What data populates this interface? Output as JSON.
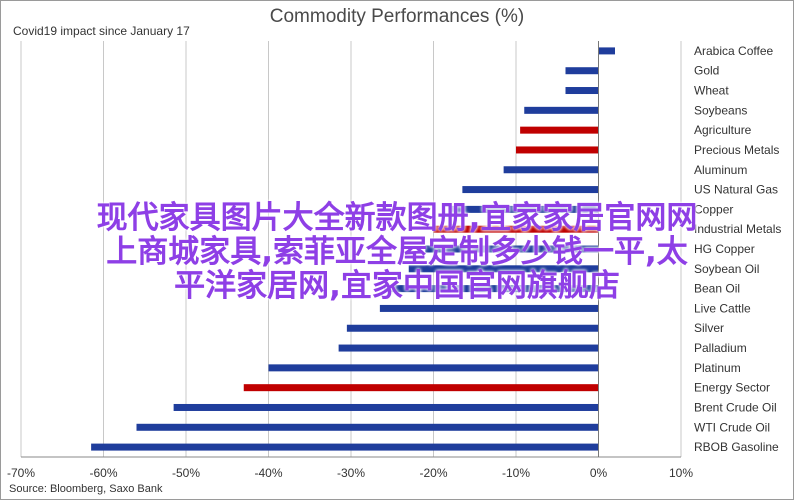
{
  "chart_data": {
    "type": "bar",
    "orientation": "horizontal",
    "title": "Commodity Performances (%)",
    "subtitle": "Covid19 impact since January 17",
    "source": "Source: Bloomberg, Saxo Bank",
    "xlim": [
      -70,
      10
    ],
    "xticks": [
      "-70%",
      "-60%",
      "-50%",
      "-40%",
      "-30%",
      "-20%",
      "-10%",
      "0%",
      "10%"
    ],
    "grid": true,
    "colors": {
      "commodity": "#1f3d9c",
      "sector": "#c00000"
    },
    "categories": [
      "Arabica Coffee",
      "Gold",
      "Wheat",
      "Soybeans",
      "Agriculture",
      "Precious Metals",
      "Aluminum",
      "US Natural Gas",
      "Copper",
      "Industrial Metals",
      "HG Copper",
      "Soybean Oil",
      "Bean Oil",
      "Live Cattle",
      "Silver",
      "Palladium",
      "Platinum",
      "Energy Sector",
      "Brent Crude Oil",
      "WTI Crude Oil",
      "RBOB Gasoline"
    ],
    "values": [
      2,
      -4,
      -4,
      -9,
      -9.5,
      -10,
      -11.5,
      -16.5,
      -18,
      -20,
      -21,
      -23,
      -26,
      -26.5,
      -30.5,
      -31.5,
      -40,
      -43,
      -51.5,
      -56,
      -61.5
    ],
    "is_sector": [
      false,
      false,
      false,
      false,
      true,
      true,
      false,
      false,
      false,
      true,
      false,
      false,
      false,
      false,
      false,
      false,
      false,
      true,
      false,
      false,
      false
    ]
  },
  "overlay": {
    "line1": "现代家具图片大全新款图册,宜家家居官网网",
    "line2": "上商城家具,索菲亚全屋定制多少钱一平,太",
    "line3": "平洋家居网,宜家中国官网旗舰店"
  }
}
